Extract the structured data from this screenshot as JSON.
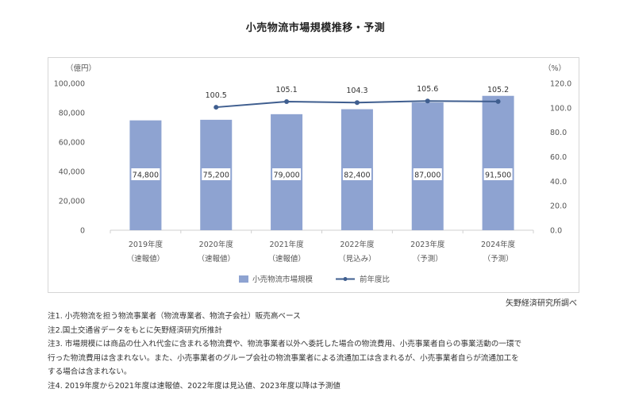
{
  "page": {
    "source": "矢野経済研究所調べ",
    "notes": [
      "注1. 小売物流を担う物流事業者（物流専業者、物流子会社）販売高ベース",
      "注2.国土交通省データをもとに矢野経済研究所推計",
      "注3. 市場規模には商品の仕入れ代金に含まれる物流費や、物流事業者以外へ委託した場合の物流費用、小売事業者自らの事業活動の一環で",
      "行った物流費用は含まれない。また、小売事業者のグループ会社の物流事業者による流通加工は含まれるが、小売事業者自らが流通加工を",
      "する場合は含まれない。",
      "注4. 2019年度から2021年度は速報値、2022年度は見込値、2023年度以降は予測値"
    ]
  },
  "chart_data": {
    "type": "bar",
    "title": "小売物流市場規模推移・予測",
    "categories": [
      "2019年度",
      "2020年度",
      "2021年度",
      "2022年度",
      "2023年度",
      "2024年度"
    ],
    "category_sublabels": [
      "（速報値）",
      "（速報値）",
      "（速報値）",
      "（見込み）",
      "（予測）",
      "（予測）"
    ],
    "y_left_unit": "（億円）",
    "y_right_unit": "（%）",
    "y_left_ticks": [
      "0",
      "20,000",
      "40,000",
      "60,000",
      "80,000",
      "100,000"
    ],
    "y_right_ticks": [
      "0.0",
      "20.0",
      "40.0",
      "60.0",
      "80.0",
      "100.0",
      "120.0"
    ],
    "ylim_left": [
      0,
      100000
    ],
    "ylim_right": [
      0,
      120
    ],
    "grid": false,
    "legend_position": "bottom",
    "series": [
      {
        "name": "小売物流市場規模",
        "type": "bar",
        "axis": "left",
        "color": "#8ea3d1",
        "values": [
          74800,
          75200,
          79000,
          82400,
          87000,
          91500
        ],
        "labels": [
          "74,800",
          "75,200",
          "79,000",
          "82,400",
          "87,000",
          "91,500"
        ]
      },
      {
        "name": "前年度比",
        "type": "line",
        "axis": "right",
        "color": "#3f5e8f",
        "values": [
          null,
          100.5,
          105.1,
          104.3,
          105.6,
          105.2
        ],
        "labels": [
          "",
          "100.5",
          "105.1",
          "104.3",
          "105.6",
          "105.2"
        ]
      }
    ]
  }
}
